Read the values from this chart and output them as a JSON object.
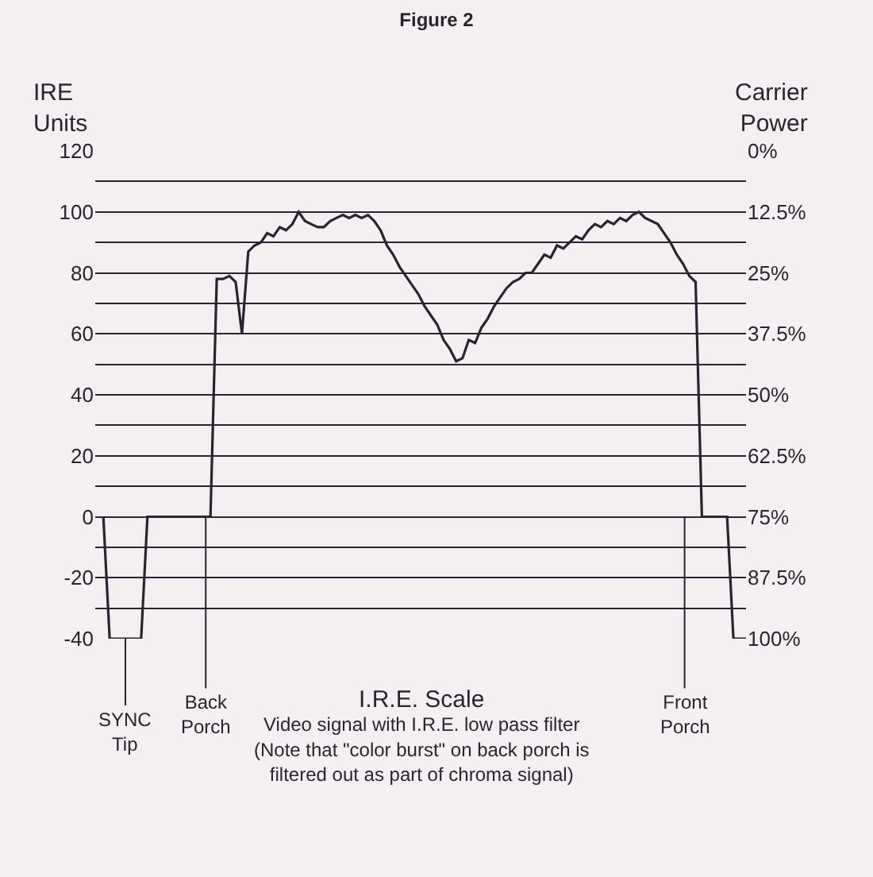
{
  "chart_data": {
    "type": "line",
    "title": "Figure 2",
    "ylabel": "IRE Units",
    "y2label": "Carrier Power",
    "annotations": [
      "SYNC Tip",
      "Back Porch",
      "Front Porch",
      "I.R.E. Scale",
      "Video signal with I.R.E. low pass filter",
      "(Note that \"color burst\" on back porch is filtered out as part of chroma signal)"
    ],
    "categories": [
      null,
      null,
      null,
      null,
      null,
      null,
      null,
      null,
      null,
      null,
      null,
      null,
      null,
      null,
      null,
      null,
      null,
      null,
      null,
      null,
      null,
      null,
      null,
      null,
      null,
      null,
      null,
      null,
      null,
      null,
      null,
      null,
      null,
      null,
      null,
      null,
      null,
      null,
      null,
      null,
      null,
      null,
      null,
      null,
      null,
      null,
      null,
      null,
      null,
      null,
      null,
      null,
      null,
      null,
      null,
      null,
      null,
      null,
      null,
      null,
      null,
      null,
      null,
      null,
      null,
      null,
      null,
      null,
      null,
      null,
      null,
      null,
      null,
      null,
      null,
      null,
      null,
      null,
      null,
      null,
      null,
      null,
      null,
      null,
      null,
      null,
      null,
      null,
      null,
      null,
      null,
      null,
      null,
      null,
      null,
      null,
      null,
      null,
      null,
      null,
      null,
      null,
      null
    ],
    "series": [
      {
        "color": "#2a2430",
        "values": [
          0,
          -40,
          -40,
          -40,
          -40,
          -40,
          -40,
          0,
          0,
          0,
          0,
          0,
          0,
          0,
          0,
          0,
          0,
          0,
          78,
          78,
          79,
          77,
          60,
          87,
          89,
          90,
          93,
          92,
          95,
          94,
          96,
          100,
          97,
          96,
          95,
          95,
          97,
          98,
          99,
          98,
          99,
          98,
          99,
          97,
          94,
          89,
          86,
          82,
          79,
          76,
          73,
          69,
          66,
          63,
          58,
          55,
          51,
          52,
          58,
          57,
          62,
          65,
          69,
          72,
          75,
          77,
          78,
          80,
          80,
          83,
          86,
          85,
          89,
          88,
          90,
          92,
          91,
          94,
          96,
          95,
          97,
          96,
          98,
          97,
          99,
          100,
          98,
          97,
          96,
          93,
          90,
          86,
          83,
          79,
          77,
          0,
          0,
          0,
          0,
          0,
          -40,
          -40,
          -40
        ]
      }
    ],
    "ylim": [
      -40,
      120
    ],
    "yticks": [
      -40,
      {
        "value": -30,
        "label": null
      },
      -20,
      {
        "value": -10,
        "label": null
      },
      0,
      {
        "value": 10,
        "label": null
      },
      20,
      {
        "value": 30,
        "label": null
      },
      40,
      {
        "value": 50,
        "label": null
      },
      60,
      {
        "value": 70,
        "label": null
      },
      80,
      {
        "value": 90,
        "label": null
      },
      100,
      {
        "value": 110,
        "label": null
      },
      120
    ],
    "y2lim": [
      100,
      0
    ],
    "y2ticks": [
      {
        "value": 0,
        "label": "0%"
      },
      {
        "value": 12.5,
        "label": "12.5%"
      },
      {
        "value": 25,
        "label": "25%"
      },
      {
        "value": 37.5,
        "label": "37.5%"
      },
      {
        "value": 50,
        "label": "50%"
      },
      {
        "value": 62.5,
        "label": "62.5%"
      },
      {
        "value": 75,
        "label": "75%"
      },
      {
        "value": 87.5,
        "label": "87.5%"
      },
      {
        "value": 100,
        "label": "100%"
      }
    ],
    "grid": "y",
    "tick_labels": "y",
    "marker": "none",
    "line_style": "solid"
  }
}
